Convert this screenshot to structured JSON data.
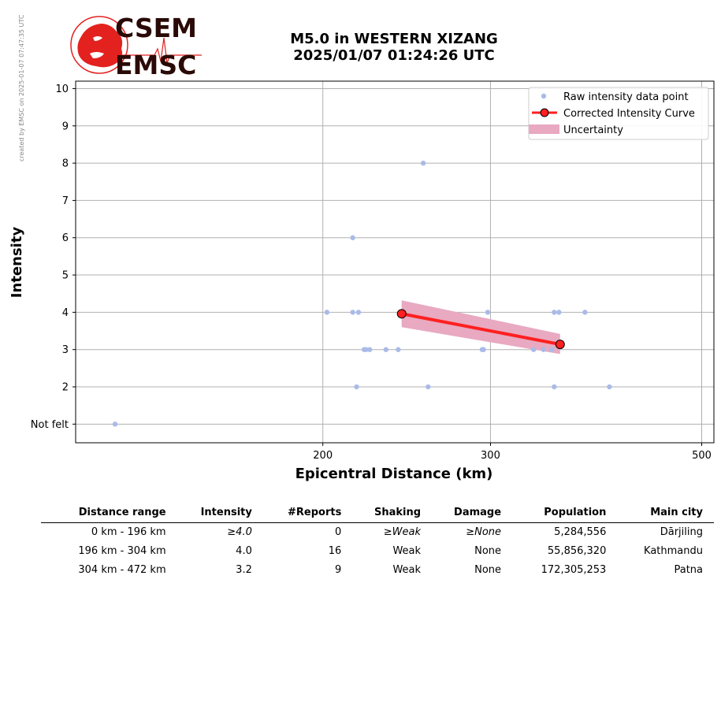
{
  "side_note": "created by EMSC on 2025-01-07 07:47:35 UTC",
  "logo": {
    "top_text": "CSEM",
    "bottom_text": "EMSC",
    "color": "#e3221f"
  },
  "title": {
    "line1": "M5.0 in WESTERN XIZANG",
    "line2": "2025/01/07 01:24:26 UTC"
  },
  "chart_data": {
    "type": "scatter",
    "xlabel": "Epicentral Distance (km)",
    "ylabel": "Intensity",
    "x_scale": "log",
    "xlim": [
      110,
      515
    ],
    "ylim": [
      0.5,
      10.2
    ],
    "x_ticks": [
      200,
      300,
      500
    ],
    "y_ticks": [
      {
        "value": 1,
        "label": "Not felt"
      },
      {
        "value": 2,
        "label": "2"
      },
      {
        "value": 3,
        "label": "3"
      },
      {
        "value": 4,
        "label": "4"
      },
      {
        "value": 5,
        "label": "5"
      },
      {
        "value": 6,
        "label": "6"
      },
      {
        "value": 7,
        "label": "7"
      },
      {
        "value": 8,
        "label": "8"
      },
      {
        "value": 9,
        "label": "9"
      },
      {
        "value": 10,
        "label": "10"
      }
    ],
    "grid": true,
    "legend_position": "top-right",
    "colors": {
      "raw": "#aabbe8",
      "curve": "#ff2020",
      "uncertainty": "#e8a9c1"
    },
    "series": [
      {
        "name": "Raw intensity data point",
        "kind": "points",
        "points": [
          [
            121,
            1
          ],
          [
            202,
            4
          ],
          [
            215,
            4
          ],
          [
            218,
            4
          ],
          [
            215,
            6
          ],
          [
            217,
            2
          ],
          [
            221,
            3
          ],
          [
            222,
            3
          ],
          [
            224,
            3
          ],
          [
            233,
            3
          ],
          [
            240,
            3
          ],
          [
            255,
            8
          ],
          [
            258,
            2
          ],
          [
            294,
            3
          ],
          [
            295,
            3
          ],
          [
            298,
            4
          ],
          [
            333,
            3
          ],
          [
            341,
            3
          ],
          [
            348,
            3
          ],
          [
            350,
            4
          ],
          [
            350,
            2
          ],
          [
            354,
            4
          ],
          [
            377,
            4
          ],
          [
            400,
            2
          ]
        ]
      },
      {
        "name": "Corrected Intensity Curve",
        "kind": "line",
        "points": [
          [
            242,
            3.96
          ],
          [
            355,
            3.14
          ]
        ]
      },
      {
        "name": "Uncertainty",
        "kind": "band",
        "lower": [
          [
            242,
            3.6
          ],
          [
            355,
            2.88
          ]
        ],
        "upper": [
          [
            242,
            4.32
          ],
          [
            355,
            3.42
          ]
        ]
      }
    ]
  },
  "table": {
    "headers": [
      "Distance range",
      "Intensity",
      "#Reports",
      "Shaking",
      "Damage",
      "Population",
      "Main city"
    ],
    "rows": [
      [
        "0 km -  196 km",
        "≥4.0",
        "0",
        "≥Weak",
        "≥None",
        "5,284,556",
        "Dārjiling"
      ],
      [
        "196 km -  304 km",
        "4.0",
        "16",
        "Weak",
        "None",
        "55,856,320",
        "Kathmandu"
      ],
      [
        "304 km -  472 km",
        "3.2",
        "9",
        "Weak",
        "None",
        "172,305,253",
        "Patna"
      ]
    ]
  }
}
